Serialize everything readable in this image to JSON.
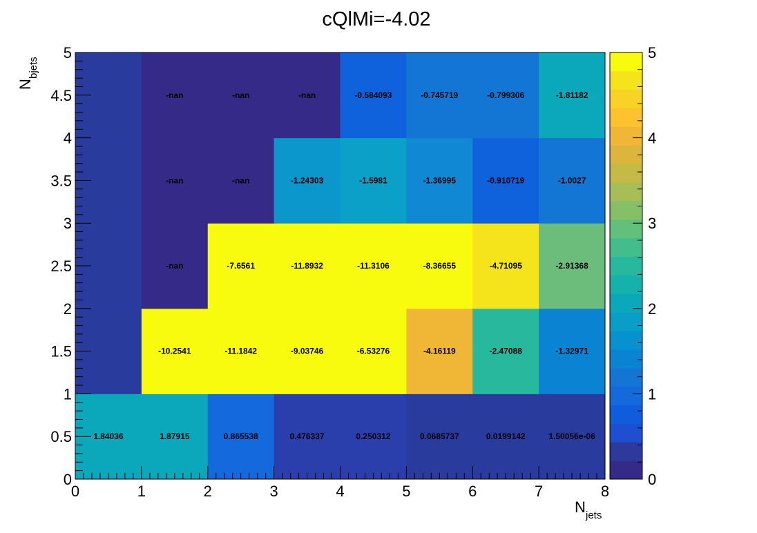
{
  "chart_data": {
    "type": "heatmap",
    "title": "cQlMi=-4.02",
    "xlabel": {
      "main": "N",
      "sub": "jets"
    },
    "ylabel": {
      "main": "N",
      "sub": "bjets"
    },
    "xlim": [
      0,
      8
    ],
    "ylim": [
      0,
      5
    ],
    "zlim": [
      0,
      5
    ],
    "x_bin_edges": [
      0,
      1,
      2,
      3,
      4,
      5,
      6,
      7,
      8
    ],
    "y_bin_edges": [
      0,
      1,
      2,
      3,
      4,
      5
    ],
    "x_tick_labels": [
      "0",
      "1",
      "2",
      "3",
      "4",
      "5",
      "6",
      "7",
      "8"
    ],
    "y_tick_labels": [
      "0",
      "0.5",
      "1",
      "1.5",
      "2",
      "2.5",
      "3",
      "3.5",
      "4",
      "4.5",
      "5"
    ],
    "z_tick_labels": [
      "0",
      "1",
      "2",
      "3",
      "4",
      "5"
    ],
    "colorscale": [
      "#352a87",
      "#2e3a9b",
      "#1d4fd0",
      "#0f5cdd",
      "#1469dc",
      "#1476d4",
      "#0b83d3",
      "#0592ce",
      "#089ec7",
      "#0ba8bb",
      "#15b2ac",
      "#28b89d",
      "#43bd8c",
      "#62c07a",
      "#85c067",
      "#a6be55",
      "#c4ba45",
      "#dcb63c",
      "#f0b737",
      "#fdc22e",
      "#f8d225",
      "#f5e31b",
      "#f9fb0e"
    ],
    "grid": false,
    "cells": [
      {
        "row": 0,
        "values": [
          1.84036,
          1.87915,
          0.865538,
          0.476337,
          0.250312,
          0.0685737,
          0.0199142,
          1.50056e-06
        ],
        "labels": [
          "1.84036",
          "1.87915",
          "0.865538",
          "0.476337",
          "0.250312",
          "0.0685737",
          "0.0199142",
          "1.50056e-06"
        ]
      },
      {
        "row": 1,
        "values": [
          0,
          -10.2541,
          -11.1842,
          -9.03746,
          -6.53276,
          -4.16119,
          -2.47088,
          -1.32971
        ],
        "labels": [
          "",
          "-10.2541",
          "-11.1842",
          "-9.03746",
          "-6.53276",
          "-4.16119",
          "-2.47088",
          "-1.32971"
        ]
      },
      {
        "row": 2,
        "values": [
          0,
          null,
          -7.6561,
          -11.8932,
          -11.3106,
          -8.36655,
          -4.71095,
          -2.91368
        ],
        "labels": [
          "",
          "-nan",
          "-7.6561",
          "-11.8932",
          "-11.3106",
          "-8.36655",
          "-4.71095",
          "-2.91368"
        ]
      },
      {
        "row": 3,
        "values": [
          0,
          null,
          null,
          -1.24303,
          -1.5981,
          -1.36995,
          -0.910719,
          -1.0027
        ],
        "labels": [
          "",
          "-nan",
          "-nan",
          "-1.24303",
          "-1.5981",
          "-1.36995",
          "-0.910719",
          "-1.0027"
        ]
      },
      {
        "row": 4,
        "values": [
          0,
          null,
          null,
          null,
          -0.584093,
          -0.745719,
          -0.799306,
          -1.81182
        ],
        "labels": [
          "",
          "-nan",
          "-nan",
          "-nan",
          "-0.584093",
          "-0.745719",
          "-0.799306",
          "-1.81182"
        ]
      }
    ],
    "cell_colors": [
      [
        "#0ba8bb",
        "#0ba8bb",
        "#1469dc",
        "#2b3fac",
        "#2b3fac",
        "#2a3b9e",
        "#2a3b9e",
        "#2a3b9e"
      ],
      [
        "#2a3b9e",
        "#f9fb0e",
        "#f9fb0e",
        "#f9fb0e",
        "#f9fb0e",
        "#f0b737",
        "#28b89d",
        "#0b83d3"
      ],
      [
        "#2a3b9e",
        "#352a87",
        "#f9fb0e",
        "#f9fb0e",
        "#f9fb0e",
        "#f9fb0e",
        "#f5e31b",
        "#6cbc7c"
      ],
      [
        "#2a3b9e",
        "#352a87",
        "#352a87",
        "#0b97cc",
        "#0aa0c8",
        "#1088d3",
        "#1062dc",
        "#1476d4"
      ],
      [
        "#2a3b9e",
        "#352a87",
        "#352a87",
        "#352a87",
        "#1062dc",
        "#1476d4",
        "#1476d4",
        "#0ba8bb"
      ]
    ]
  }
}
